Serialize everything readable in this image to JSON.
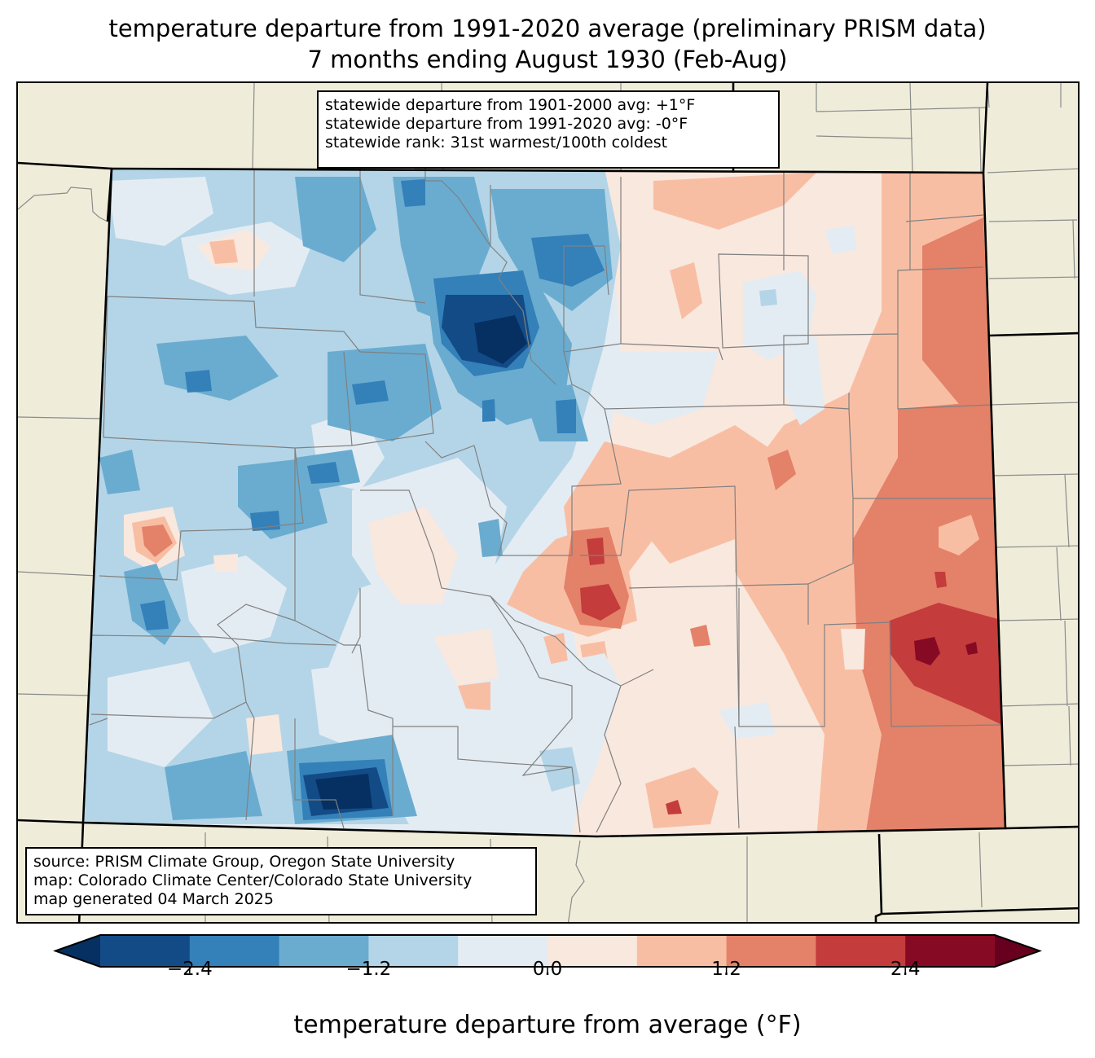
{
  "title": {
    "line1": "temperature departure from 1991-2020 average (preliminary PRISM data)",
    "line2": "7 months ending August 1930 (Feb-Aug)"
  },
  "stats_box": {
    "line1": "statewide departure from 1901-2000 avg: +1°F",
    "line2": "statewide departure from 1991-2020 avg: -0°F",
    "line3": "statewide rank: 31st warmest/100th coldest"
  },
  "credits_box": {
    "line1": "source: PRISM Climate Group, Oregon State University",
    "line2": "map: Colorado Climate Center/Colorado State University",
    "line3": "map generated 04 March 2025"
  },
  "map": {
    "region": "Colorado",
    "land_color": "#efedda",
    "summary": "Western and central mountains below average (blue), strongest cold anomalies in north-central and south-central Colorado; eastern plains above average (red), strongest warm anomalies in the southeast."
  },
  "colorbar": {
    "label": "temperature departure from average (°F)",
    "boundaries": [
      -3.0,
      -2.4,
      -1.8,
      -1.2,
      -0.6,
      0.0,
      0.6,
      1.2,
      1.8,
      2.4,
      3.0
    ],
    "colors": [
      "#134b87",
      "#3480b9",
      "#6aacd0",
      "#b4d5e7",
      "#e4ecf3",
      "#f9e8de",
      "#f8bea4",
      "#e48169",
      "#c43c3c",
      "#870a24"
    ],
    "under_color": "#053061",
    "over_color": "#67001f",
    "extend": "both",
    "ticks": [
      -2.4,
      -1.2,
      0.0,
      1.2,
      2.4
    ],
    "tick_labels": [
      "−2.4",
      "−1.2",
      "0.0",
      "1.2",
      "2.4"
    ]
  },
  "chart_data": {
    "type": "heatmap",
    "title": "temperature departure from 1991-2020 average (preliminary PRISM data) — 7 months ending August 1930 (Feb-Aug)",
    "colorbar_label": "temperature departure from average (°F)",
    "value_range": [
      -3.0,
      3.0
    ],
    "bins": [
      -3.0,
      -2.4,
      -1.8,
      -1.2,
      -0.6,
      0.0,
      0.6,
      1.2,
      1.8,
      2.4,
      3.0
    ],
    "statewide_departure_1901_2000": 1,
    "statewide_departure_1991_2020": 0,
    "rank_warmest": 31,
    "rank_coldest": 100
  }
}
